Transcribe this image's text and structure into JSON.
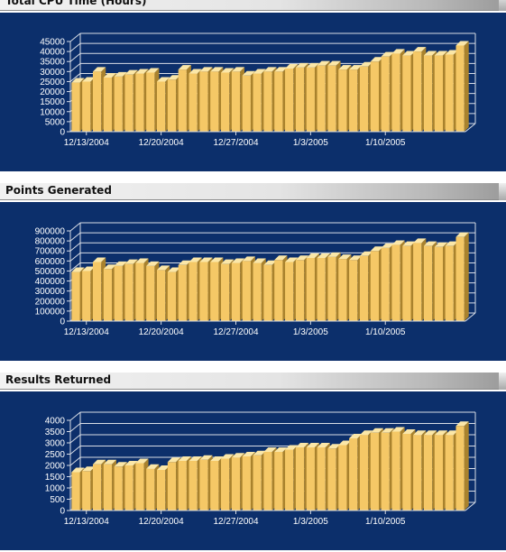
{
  "sections": [
    {
      "title": "Total CPU Time (Hours)",
      "chart_data": {
        "type": "bar",
        "yticks": [
          0,
          5000,
          10000,
          15000,
          20000,
          25000,
          30000,
          35000,
          40000,
          45000
        ],
        "ylim": [
          0,
          45000
        ],
        "xtick_labels": [
          "12/13/2004",
          "12/20/2004",
          "12/27/2004",
          "1/3/2005",
          "1/10/2005"
        ],
        "values": [
          24500,
          25000,
          30000,
          27000,
          27500,
          28500,
          29000,
          29500,
          25000,
          26000,
          31000,
          29000,
          30000,
          30000,
          29500,
          30000,
          28000,
          29000,
          30000,
          30000,
          31500,
          32000,
          32000,
          33000,
          33000,
          31000,
          31000,
          32500,
          35000,
          37500,
          39000,
          38000,
          40000,
          38000,
          38000,
          38500,
          43000
        ]
      }
    },
    {
      "title": "Points Generated",
      "chart_data": {
        "type": "bar",
        "yticks": [
          0,
          100000,
          200000,
          300000,
          400000,
          500000,
          600000,
          700000,
          800000,
          900000
        ],
        "ylim": [
          0,
          900000
        ],
        "xtick_labels": [
          "12/13/2004",
          "12/20/2004",
          "12/27/2004",
          "1/3/2005",
          "1/10/2005"
        ],
        "values": [
          490000,
          500000,
          590000,
          520000,
          550000,
          570000,
          580000,
          550000,
          510000,
          490000,
          560000,
          590000,
          590000,
          590000,
          570000,
          580000,
          600000,
          580000,
          560000,
          610000,
          590000,
          610000,
          630000,
          630000,
          640000,
          620000,
          610000,
          650000,
          700000,
          730000,
          760000,
          750000,
          780000,
          750000,
          740000,
          750000,
          840000
        ]
      }
    },
    {
      "title": "Results Returned",
      "chart_data": {
        "type": "bar",
        "yticks": [
          0,
          500,
          1000,
          1500,
          2000,
          2500,
          3000,
          3500,
          4000
        ],
        "ylim": [
          0,
          4000
        ],
        "xtick_labels": [
          "12/13/2004",
          "12/20/2004",
          "12/27/2004",
          "1/3/2005",
          "1/10/2005"
        ],
        "values": [
          1700,
          1750,
          2050,
          2050,
          1950,
          2000,
          2100,
          1850,
          1800,
          2150,
          2200,
          2200,
          2250,
          2200,
          2300,
          2350,
          2400,
          2450,
          2600,
          2600,
          2700,
          2800,
          2800,
          2800,
          2750,
          2900,
          3200,
          3350,
          3450,
          3450,
          3500,
          3400,
          3350,
          3350,
          3350,
          3350,
          3750
        ]
      }
    }
  ],
  "colors": {
    "panel_background": "#0c2f6b",
    "bar_front": "#f5c866",
    "bar_top": "#fbe7a8",
    "bar_side": "#a9822d",
    "axis_lines": "#d8dde6"
  }
}
